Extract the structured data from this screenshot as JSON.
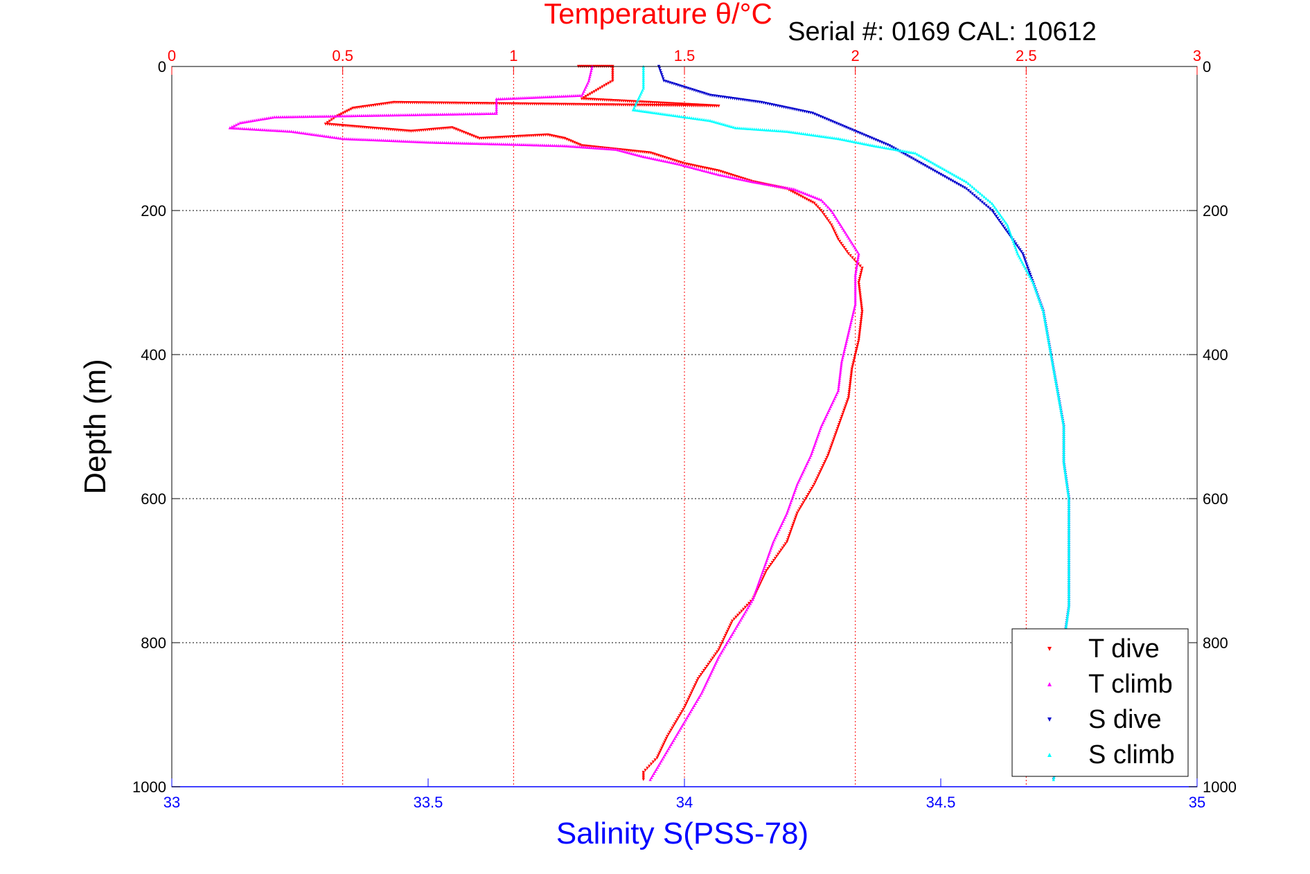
{
  "chart_data": {
    "type": "scatter",
    "title": "Temperature θ/°C",
    "subtitle": "Serial #: 0169 CAL: 10612",
    "xlabel": "Salinity S(PSS-78)",
    "ylabel": "Depth (m)",
    "x_top": {
      "label": "Temperature θ/°C",
      "range": [
        0,
        3
      ],
      "ticks": [
        "0",
        "0.5",
        "1",
        "1.5",
        "2",
        "2.5",
        "3"
      ],
      "color": "#ff0000"
    },
    "x_bottom": {
      "label": "Salinity S(PSS-78)",
      "range": [
        33,
        35
      ],
      "ticks": [
        "33",
        "33.5",
        "34",
        "34.5",
        "35"
      ],
      "color": "#0000ff"
    },
    "y": {
      "range": [
        0,
        1000
      ],
      "reversed": true,
      "ticks": [
        "0",
        "200",
        "400",
        "600",
        "800",
        "1000"
      ]
    },
    "grid": true,
    "legend_position": "bottom-right",
    "series": [
      {
        "name": "T dive",
        "axis": "temperature",
        "color": "#ff0000",
        "marker": "triangle-down",
        "points": [
          [
            1.19,
            0
          ],
          [
            1.29,
            0
          ],
          [
            1.29,
            20
          ],
          [
            1.2,
            45
          ],
          [
            1.6,
            55
          ],
          [
            0.65,
            50
          ],
          [
            0.53,
            58
          ],
          [
            0.48,
            70
          ],
          [
            0.45,
            80
          ],
          [
            0.7,
            90
          ],
          [
            0.82,
            85
          ],
          [
            0.9,
            100
          ],
          [
            1.1,
            95
          ],
          [
            1.15,
            100
          ],
          [
            1.2,
            110
          ],
          [
            1.3,
            115
          ],
          [
            1.4,
            120
          ],
          [
            1.5,
            135
          ],
          [
            1.6,
            145
          ],
          [
            1.7,
            160
          ],
          [
            1.8,
            170
          ],
          [
            1.88,
            190
          ],
          [
            1.9,
            200
          ],
          [
            1.93,
            220
          ],
          [
            1.95,
            240
          ],
          [
            1.98,
            260
          ],
          [
            2.02,
            280
          ],
          [
            2.01,
            300
          ],
          [
            2.02,
            340
          ],
          [
            2.01,
            380
          ],
          [
            1.99,
            420
          ],
          [
            1.98,
            460
          ],
          [
            1.95,
            500
          ],
          [
            1.92,
            540
          ],
          [
            1.88,
            580
          ],
          [
            1.83,
            620
          ],
          [
            1.8,
            660
          ],
          [
            1.74,
            700
          ],
          [
            1.7,
            740
          ],
          [
            1.64,
            770
          ],
          [
            1.6,
            810
          ],
          [
            1.54,
            850
          ],
          [
            1.5,
            890
          ],
          [
            1.45,
            930
          ],
          [
            1.42,
            960
          ],
          [
            1.38,
            980
          ],
          [
            1.38,
            990
          ]
        ]
      },
      {
        "name": "T climb",
        "axis": "temperature",
        "color": "#ff00ff",
        "marker": "triangle-up",
        "points": [
          [
            1.23,
            0
          ],
          [
            1.22,
            20
          ],
          [
            1.2,
            40
          ],
          [
            0.95,
            45
          ],
          [
            0.95,
            65
          ],
          [
            0.3,
            70
          ],
          [
            0.2,
            78
          ],
          [
            0.17,
            85
          ],
          [
            0.35,
            90
          ],
          [
            0.5,
            100
          ],
          [
            0.75,
            105
          ],
          [
            1.0,
            108
          ],
          [
            1.15,
            110
          ],
          [
            1.3,
            115
          ],
          [
            1.38,
            125
          ],
          [
            1.48,
            135
          ],
          [
            1.6,
            150
          ],
          [
            1.7,
            160
          ],
          [
            1.82,
            170
          ],
          [
            1.9,
            185
          ],
          [
            1.93,
            200
          ],
          [
            1.97,
            230
          ],
          [
            2.01,
            260
          ],
          [
            2.0,
            290
          ],
          [
            2.0,
            330
          ],
          [
            1.98,
            370
          ],
          [
            1.96,
            410
          ],
          [
            1.95,
            450
          ],
          [
            1.9,
            500
          ],
          [
            1.87,
            540
          ],
          [
            1.83,
            580
          ],
          [
            1.8,
            620
          ],
          [
            1.76,
            660
          ],
          [
            1.73,
            700
          ],
          [
            1.7,
            740
          ],
          [
            1.65,
            780
          ],
          [
            1.6,
            820
          ],
          [
            1.55,
            870
          ],
          [
            1.5,
            910
          ],
          [
            1.45,
            950
          ],
          [
            1.4,
            990
          ]
        ]
      },
      {
        "name": "S dive",
        "axis": "salinity",
        "color": "#0000cc",
        "marker": "triangle-down",
        "points": [
          [
            33.95,
            0
          ],
          [
            33.96,
            20
          ],
          [
            34.05,
            40
          ],
          [
            34.15,
            50
          ],
          [
            34.25,
            65
          ],
          [
            34.3,
            80
          ],
          [
            34.35,
            95
          ],
          [
            34.4,
            110
          ],
          [
            34.45,
            130
          ],
          [
            34.5,
            150
          ],
          [
            34.55,
            170
          ],
          [
            34.6,
            200
          ],
          [
            34.63,
            230
          ],
          [
            34.66,
            260
          ],
          [
            34.68,
            300
          ],
          [
            34.7,
            340
          ],
          [
            34.71,
            380
          ],
          [
            34.72,
            420
          ],
          [
            34.73,
            460
          ],
          [
            34.74,
            500
          ],
          [
            34.74,
            550
          ],
          [
            34.75,
            600
          ],
          [
            34.75,
            650
          ],
          [
            34.75,
            700
          ],
          [
            34.75,
            750
          ],
          [
            34.74,
            800
          ],
          [
            34.74,
            850
          ],
          [
            34.74,
            900
          ],
          [
            34.73,
            950
          ],
          [
            34.72,
            990
          ]
        ]
      },
      {
        "name": "S climb",
        "axis": "salinity",
        "color": "#00ffff",
        "marker": "triangle-up",
        "points": [
          [
            33.92,
            0
          ],
          [
            33.92,
            30
          ],
          [
            33.9,
            60
          ],
          [
            33.95,
            65
          ],
          [
            34.05,
            75
          ],
          [
            34.1,
            85
          ],
          [
            34.2,
            90
          ],
          [
            34.3,
            100
          ],
          [
            34.37,
            110
          ],
          [
            34.45,
            120
          ],
          [
            34.5,
            140
          ],
          [
            34.55,
            160
          ],
          [
            34.6,
            190
          ],
          [
            34.63,
            220
          ],
          [
            34.65,
            260
          ],
          [
            34.68,
            300
          ],
          [
            34.7,
            340
          ],
          [
            34.71,
            380
          ],
          [
            34.72,
            420
          ],
          [
            34.73,
            460
          ],
          [
            34.74,
            500
          ],
          [
            34.74,
            550
          ],
          [
            34.75,
            600
          ],
          [
            34.75,
            650
          ],
          [
            34.75,
            700
          ],
          [
            34.75,
            750
          ],
          [
            34.74,
            800
          ],
          [
            34.74,
            850
          ],
          [
            34.73,
            900
          ],
          [
            34.73,
            950
          ],
          [
            34.72,
            990
          ]
        ]
      }
    ]
  }
}
